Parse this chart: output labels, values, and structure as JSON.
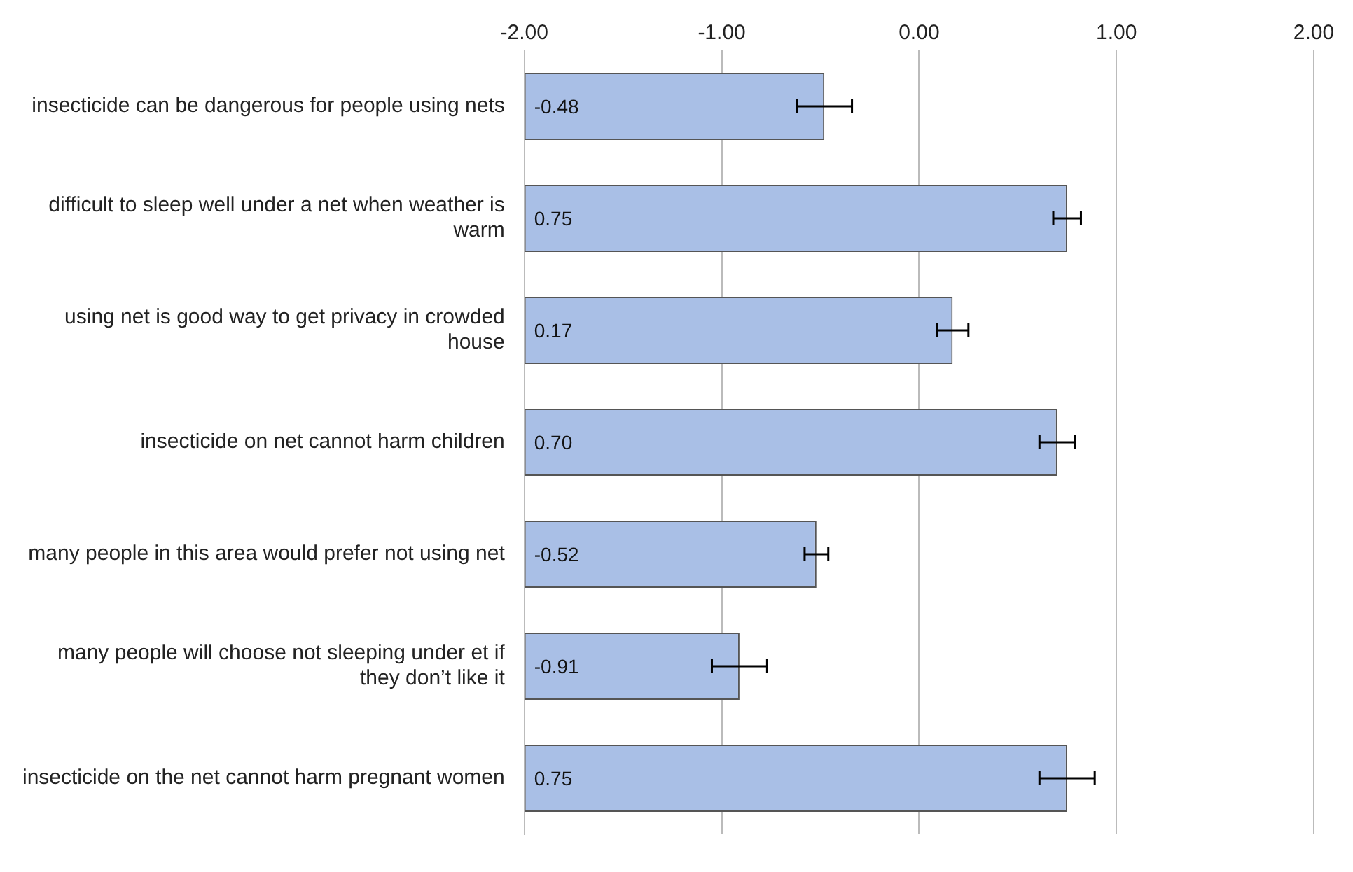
{
  "chart_data": {
    "type": "bar",
    "orientation": "horizontal",
    "categories": [
      "insecticide can be dangerous for people using nets",
      "difficult to sleep well under a net when weather is warm",
      "using net is good way to get privacy in crowded house",
      "insecticide on net cannot harm children",
      "many people in this area would prefer not using net",
      "many people will choose not sleeping under et if they don’t like it",
      "insecticide on the net cannot harm pregnant women"
    ],
    "base": [
      -2,
      -2,
      -2,
      -2,
      -2,
      -2,
      -2
    ],
    "values": [
      1.52,
      2.75,
      2.17,
      2.7,
      1.48,
      1.09,
      2.75
    ],
    "value_labels": [
      "-0.48",
      "0.75",
      "0.17",
      "0.70",
      "-0.52",
      "-0.91",
      "0.75"
    ],
    "errors": [
      0.14,
      0.07,
      0.08,
      0.09,
      0.06,
      0.14,
      0.14
    ],
    "color": "#a9bfe6",
    "xlim": [
      -2,
      2
    ],
    "xticks": [
      {
        "value": -2,
        "label": "-2.00"
      },
      {
        "value": -1,
        "label": "-1.00"
      },
      {
        "value": 0,
        "label": "0.00"
      },
      {
        "value": 1,
        "label": "1.00"
      },
      {
        "value": 2,
        "label": "2.00"
      }
    ],
    "grid": "x"
  }
}
